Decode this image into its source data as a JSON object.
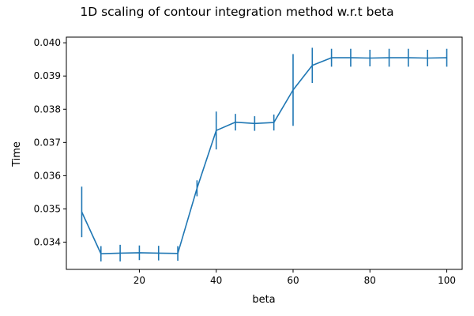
{
  "chart_data": {
    "type": "line",
    "title": "1D scaling of contour integration method w.r.t beta",
    "xlabel": "beta",
    "ylabel": "Time",
    "xlim": [
      1,
      104
    ],
    "ylim": [
      0.03318,
      0.04017
    ],
    "grid": false,
    "xticks": [
      20,
      40,
      60,
      80,
      100
    ],
    "xtick_labels": [
      "20",
      "40",
      "60",
      "80",
      "100"
    ],
    "yticks": [
      0.034,
      0.035,
      0.036,
      0.037,
      0.038,
      0.039,
      0.04
    ],
    "ytick_labels": [
      "0.034",
      "0.035",
      "0.036",
      "0.037",
      "0.038",
      "0.039",
      "0.040"
    ],
    "series": [
      {
        "color": "#1f77b4",
        "x": [
          5,
          10,
          15,
          20,
          25,
          30,
          35,
          40,
          45,
          50,
          55,
          60,
          65,
          70,
          75,
          80,
          85,
          90,
          95,
          100
        ],
        "y": [
          0.03491,
          0.03365,
          0.03367,
          0.03368,
          0.03367,
          0.03366,
          0.03562,
          0.03736,
          0.03761,
          0.03757,
          0.0376,
          0.03858,
          0.03932,
          0.03955,
          0.03955,
          0.03954,
          0.03955,
          0.03955,
          0.03954,
          0.03955
        ],
        "err": [
          0.00076,
          0.00023,
          0.00025,
          0.00022,
          0.00022,
          0.00022,
          0.00024,
          0.00057,
          0.00025,
          0.00022,
          0.00024,
          0.00108,
          0.00053,
          0.00027,
          0.00027,
          0.00025,
          0.00027,
          0.00027,
          0.00025,
          0.00027
        ]
      }
    ]
  }
}
